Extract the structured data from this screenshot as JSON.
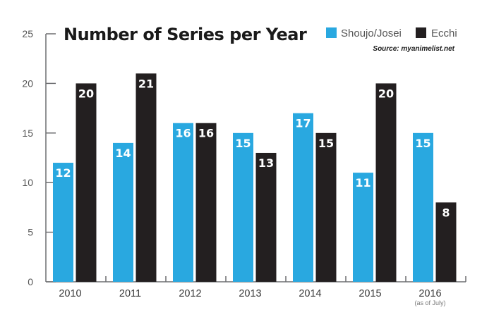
{
  "chart_data": {
    "type": "bar",
    "title": "Number of Series per Year",
    "source": "Source: myanimelist.net",
    "categories": [
      "2010",
      "2011",
      "2012",
      "2013",
      "2014",
      "2015",
      "2016"
    ],
    "category_notes": [
      "",
      "",
      "",
      "",
      "",
      "",
      "(as of July)"
    ],
    "series": [
      {
        "name": "Shoujo/Josei",
        "color": "#29a8e0",
        "values": [
          12,
          14,
          16,
          15,
          17,
          11,
          15
        ]
      },
      {
        "name": "Ecchi",
        "color": "#231f20",
        "values": [
          20,
          21,
          16,
          13,
          15,
          20,
          8
        ]
      }
    ],
    "xlabel": "",
    "ylabel": "",
    "ylim": [
      0,
      25
    ],
    "yticks": [
      0,
      5,
      10,
      15,
      20,
      25
    ],
    "grid": false,
    "legend": "top-right",
    "data_labels": true
  }
}
